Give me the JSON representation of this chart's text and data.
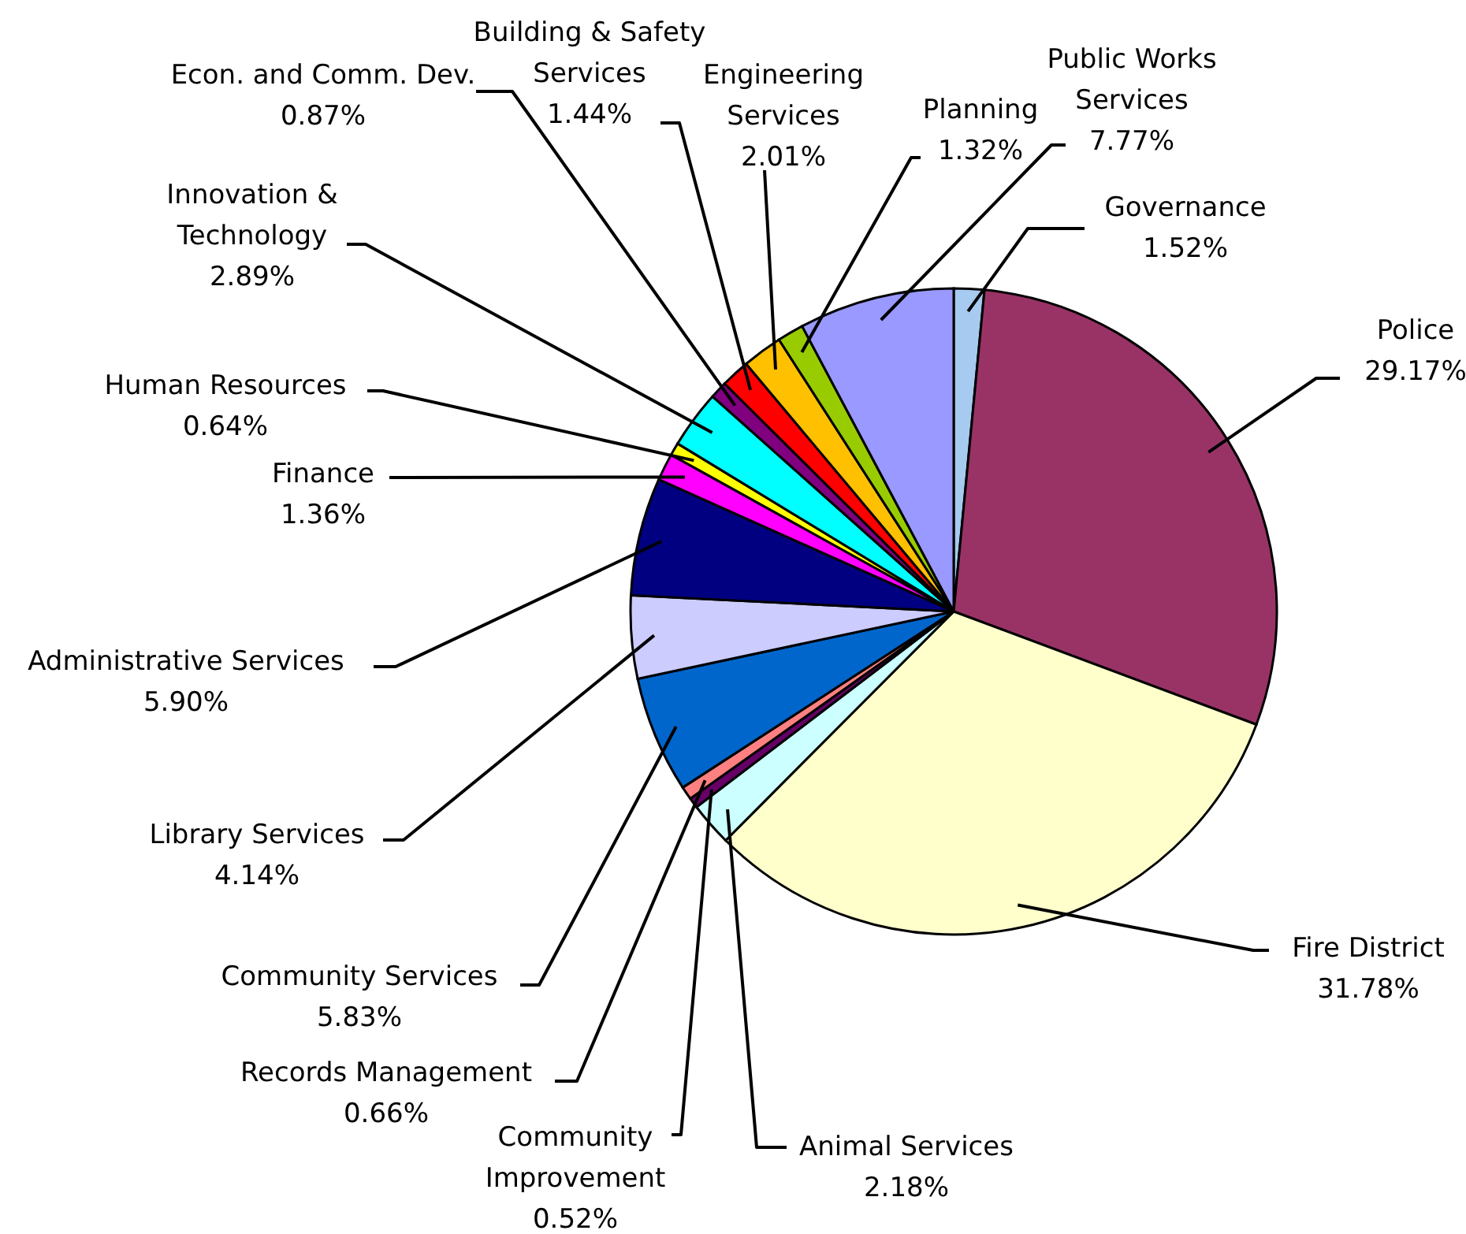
{
  "chart_data": {
    "type": "pie",
    "categories": [
      "Governance",
      "Police",
      "Fire District",
      "Animal Services",
      "Community Improvement",
      "Records Management",
      "Community Services",
      "Library Services",
      "Administrative Services",
      "Finance",
      "Human Resources",
      "Innovation & Technology",
      "Econ. and Comm. Dev.",
      "Building & Safety Services",
      "Engineering Services",
      "Planning",
      "Public Works Services"
    ],
    "values": [
      1.52,
      29.17,
      31.78,
      2.18,
      0.52,
      0.66,
      5.83,
      4.14,
      5.9,
      1.36,
      0.64,
      2.89,
      0.87,
      1.44,
      2.01,
      1.32,
      7.77
    ],
    "value_labels": [
      "1.52%",
      "29.17%",
      "31.78%",
      "2.18%",
      "0.52%",
      "0.66%",
      "5.83%",
      "4.14%",
      "5.90%",
      "1.36%",
      "0.64%",
      "2.89%",
      "0.87%",
      "1.44%",
      "2.01%",
      "1.32%",
      "7.77%"
    ],
    "colors": [
      "#a6caf0",
      "#993366",
      "#ffffcc",
      "#ccffff",
      "#660066",
      "#ff8080",
      "#0066cc",
      "#ccccff",
      "#000080",
      "#ff00ff",
      "#ffff00",
      "#00ffff",
      "#800080",
      "#ff0000",
      "#ffc000",
      "#99cc00",
      "#9999ff"
    ]
  }
}
